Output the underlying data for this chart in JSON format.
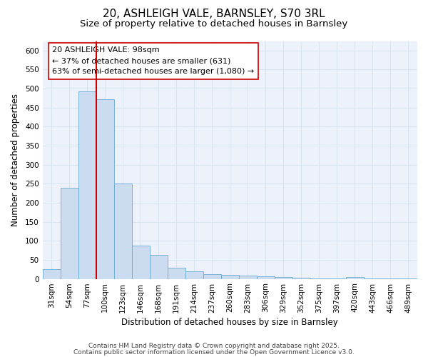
{
  "title": "20, ASHLEIGH VALE, BARNSLEY, S70 3RL",
  "subtitle": "Size of property relative to detached houses in Barnsley",
  "xlabel": "Distribution of detached houses by size in Barnsley",
  "ylabel": "Number of detached properties",
  "bin_labels": [
    "31sqm",
    "54sqm",
    "77sqm",
    "100sqm",
    "123sqm",
    "146sqm",
    "168sqm",
    "191sqm",
    "214sqm",
    "237sqm",
    "260sqm",
    "283sqm",
    "306sqm",
    "329sqm",
    "352sqm",
    "375sqm",
    "397sqm",
    "420sqm",
    "443sqm",
    "466sqm",
    "489sqm"
  ],
  "bar_values": [
    25,
    240,
    493,
    473,
    250,
    88,
    63,
    30,
    20,
    13,
    10,
    8,
    6,
    4,
    3,
    2,
    1,
    5,
    1,
    1,
    1
  ],
  "bar_color": "#ccdcf0",
  "bar_edge_color": "#6aaad4",
  "vline_x": 2.5,
  "vline_color": "#cc0000",
  "annotation_line1": "20 ASHLEIGH VALE: 98sqm",
  "annotation_line2": "← 37% of detached houses are smaller (631)",
  "annotation_line3": "63% of semi-detached houses are larger (1,080) →",
  "ylim": [
    0,
    625
  ],
  "yticks": [
    0,
    50,
    100,
    150,
    200,
    250,
    300,
    350,
    400,
    450,
    500,
    550,
    600
  ],
  "footnote_line1": "Contains HM Land Registry data © Crown copyright and database right 2025.",
  "footnote_line2": "Contains public sector information licensed under the Open Government Licence v3.0.",
  "bg_color": "#edf2fa",
  "grid_color": "#d8e4f0",
  "title_fontsize": 11,
  "subtitle_fontsize": 9.5,
  "axis_label_fontsize": 8.5,
  "tick_fontsize": 7.5,
  "annotation_fontsize": 8,
  "footnote_fontsize": 6.5
}
